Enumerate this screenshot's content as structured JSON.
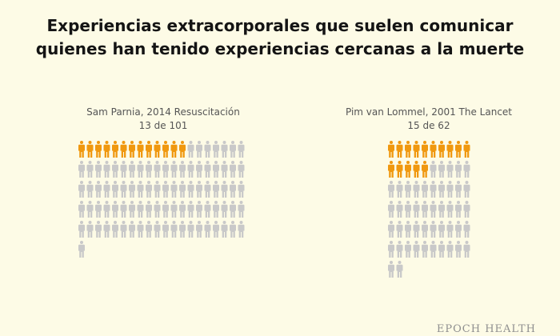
{
  "title": "Experiencias extracorporales que suelen comunicar quienes han tenido experiencias cercanas a la muerte",
  "watermark": "EPOCH HEALTH",
  "colors": {
    "background": "#fdfbe6",
    "highlight": "#f0980f",
    "base": "#c9c9c9"
  },
  "chart_data": [
    {
      "type": "pictogram",
      "label": "Sam Parnia, 2014 Resuscitación",
      "caption": "13 de 101",
      "highlighted": 13,
      "total": 101,
      "icon": "person-icon"
    },
    {
      "type": "pictogram",
      "label": "Pim van Lommel, 2001 The Lancet",
      "caption": "15 de 62",
      "highlighted": 15,
      "total": 62,
      "icon": "person-icon"
    }
  ]
}
